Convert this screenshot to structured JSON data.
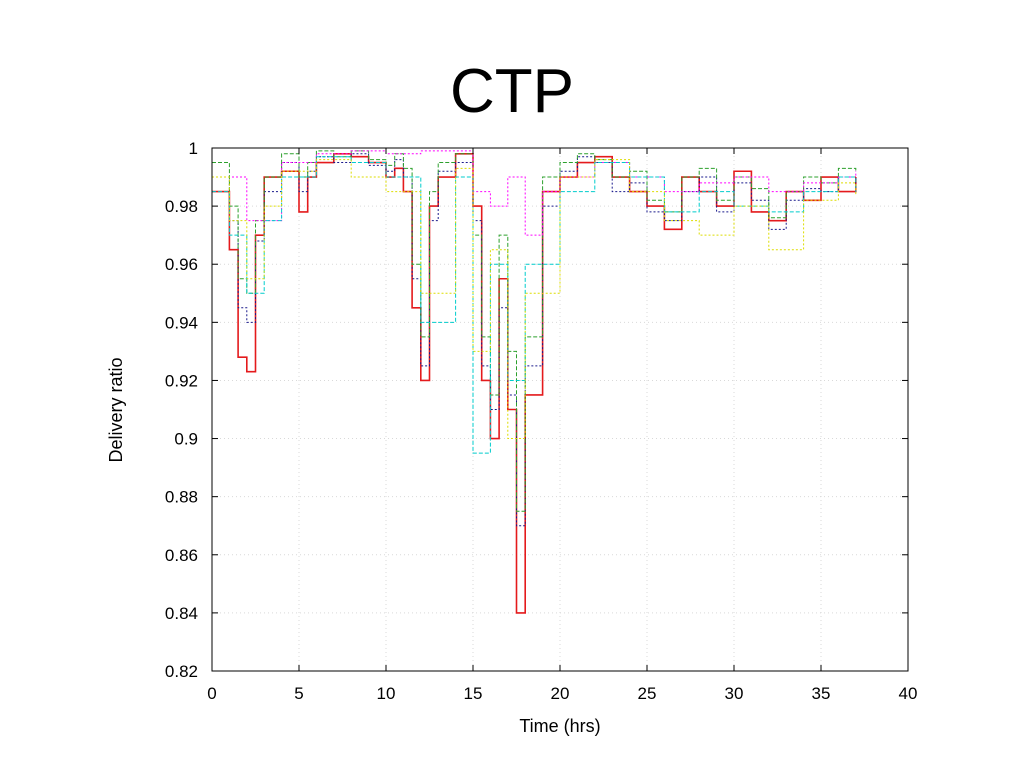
{
  "slide": {
    "title": "CTP"
  },
  "chart_data": {
    "type": "line",
    "title": "",
    "xlabel": "Time (hrs)",
    "ylabel": "Delivery ratio",
    "xlim": [
      0,
      40
    ],
    "ylim": [
      0.82,
      1.0
    ],
    "x_ticks": [
      0,
      5,
      10,
      15,
      20,
      25,
      30,
      35,
      40
    ],
    "x_tick_labels": [
      "0",
      "5",
      "10",
      "15",
      "20",
      "25",
      "30",
      "35",
      "40"
    ],
    "y_ticks": [
      0.82,
      0.84,
      0.86,
      0.88,
      0.9,
      0.92,
      0.94,
      0.96,
      0.98,
      1.0
    ],
    "y_tick_labels": [
      "0.82",
      "0.84",
      "0.86",
      "0.88",
      "0.9",
      "0.92",
      "0.94",
      "0.96",
      "0.98",
      "1"
    ],
    "grid": true,
    "legend": "none",
    "line_style": "step",
    "colors": [
      "#e41a1c",
      "#1a1a8c",
      "#2ca02c",
      "#ff00ff",
      "#00cccc",
      "#dddd00",
      "#000000",
      "#ff7f0e",
      "#17becf",
      "#8c564b"
    ],
    "series": [
      {
        "x": [
          0,
          1,
          1.5,
          2,
          2.5,
          3,
          4,
          5,
          5.5,
          6,
          7,
          8,
          9,
          10,
          10.5,
          11,
          11.5,
          12,
          12.5,
          13,
          14,
          15,
          15.5,
          16,
          16.5,
          17,
          17.5,
          18,
          19,
          20,
          21,
          22,
          23,
          24,
          25,
          26,
          27,
          28,
          29,
          30,
          31,
          32,
          33,
          34,
          35,
          36,
          37
        ],
        "y": [
          0.985,
          0.965,
          0.928,
          0.923,
          0.97,
          0.99,
          0.992,
          0.978,
          0.99,
          0.995,
          0.998,
          0.997,
          0.995,
          0.99,
          0.993,
          0.985,
          0.945,
          0.92,
          0.98,
          0.99,
          0.998,
          0.98,
          0.92,
          0.9,
          0.955,
          0.91,
          0.84,
          0.915,
          0.985,
          0.99,
          0.995,
          0.997,
          0.99,
          0.985,
          0.98,
          0.972,
          0.99,
          0.985,
          0.98,
          0.992,
          0.978,
          0.975,
          0.985,
          0.982,
          0.99,
          0.985,
          0.99
        ]
      },
      {
        "x": [
          0,
          1,
          1.5,
          2,
          2.5,
          3,
          4,
          5,
          5.5,
          6,
          7,
          8,
          9,
          10,
          10.5,
          11,
          11.5,
          12,
          12.5,
          13,
          14,
          15,
          15.5,
          16,
          16.5,
          17,
          17.5,
          18,
          19,
          20,
          21,
          22,
          23,
          24,
          25,
          26,
          27,
          28,
          29,
          30,
          31,
          32,
          33,
          34,
          35,
          36,
          37
        ],
        "y": [
          0.99,
          0.975,
          0.945,
          0.94,
          0.968,
          0.985,
          0.995,
          0.985,
          0.992,
          0.997,
          0.995,
          0.998,
          0.994,
          0.992,
          0.996,
          0.99,
          0.955,
          0.925,
          0.975,
          0.992,
          0.995,
          0.975,
          0.925,
          0.91,
          0.945,
          0.915,
          0.87,
          0.925,
          0.98,
          0.992,
          0.997,
          0.995,
          0.985,
          0.988,
          0.978,
          0.975,
          0.985,
          0.99,
          0.978,
          0.988,
          0.982,
          0.972,
          0.982,
          0.986,
          0.985,
          0.99,
          0.988
        ]
      },
      {
        "x": [
          0,
          1,
          1.5,
          2,
          2.5,
          3,
          4,
          5,
          5.5,
          6,
          7,
          8,
          9,
          10,
          10.5,
          11,
          11.5,
          12,
          12.5,
          13,
          14,
          15,
          15.5,
          16,
          16.5,
          17,
          17.5,
          18,
          19,
          20,
          21,
          22,
          23,
          24,
          25,
          26,
          27,
          28,
          29,
          30,
          31,
          32,
          33,
          34,
          35,
          36,
          37
        ],
        "y": [
          0.995,
          0.98,
          0.955,
          0.95,
          0.975,
          0.99,
          0.998,
          0.99,
          0.995,
          0.999,
          0.997,
          0.999,
          0.996,
          0.994,
          0.998,
          0.993,
          0.96,
          0.935,
          0.985,
          0.995,
          0.998,
          0.97,
          0.935,
          0.915,
          0.97,
          0.93,
          0.875,
          0.935,
          0.99,
          0.995,
          0.998,
          0.996,
          0.99,
          0.992,
          0.982,
          0.978,
          0.99,
          0.993,
          0.982,
          0.99,
          0.986,
          0.976,
          0.985,
          0.99,
          0.988,
          0.993,
          0.992
        ]
      },
      {
        "x": [
          0,
          2,
          4,
          6,
          8,
          10,
          12,
          14,
          15,
          16,
          17,
          18,
          19,
          20,
          22,
          24,
          26,
          28,
          30,
          32,
          34,
          36,
          37
        ],
        "y": [
          0.99,
          0.975,
          0.995,
          0.998,
          0.999,
          0.998,
          0.999,
          0.999,
          0.985,
          0.98,
          0.99,
          0.97,
          0.985,
          0.99,
          0.995,
          0.99,
          0.985,
          0.988,
          0.99,
          0.985,
          0.988,
          0.99,
          0.992
        ]
      },
      {
        "x": [
          0,
          1,
          2,
          3,
          4,
          6,
          8,
          10,
          12,
          14,
          15,
          16,
          17,
          18,
          20,
          22,
          24,
          26,
          28,
          30,
          32,
          34,
          36,
          37
        ],
        "y": [
          0.985,
          0.97,
          0.95,
          0.975,
          0.99,
          0.997,
          0.995,
          0.99,
          0.94,
          0.99,
          0.895,
          0.96,
          0.92,
          0.96,
          0.985,
          0.995,
          0.99,
          0.978,
          0.985,
          0.98,
          0.978,
          0.985,
          0.99,
          0.985
        ]
      },
      {
        "x": [
          0,
          1,
          2,
          3,
          4,
          6,
          8,
          10,
          12,
          14,
          15,
          16,
          17,
          18,
          20,
          22,
          24,
          26,
          28,
          30,
          32,
          34,
          36,
          37
        ],
        "y": [
          0.99,
          0.975,
          0.955,
          0.98,
          0.992,
          0.996,
          0.99,
          0.985,
          0.95,
          0.993,
          0.93,
          0.965,
          0.9,
          0.95,
          0.99,
          0.996,
          0.985,
          0.975,
          0.97,
          0.98,
          0.965,
          0.982,
          0.988,
          0.984
        ]
      }
    ]
  }
}
